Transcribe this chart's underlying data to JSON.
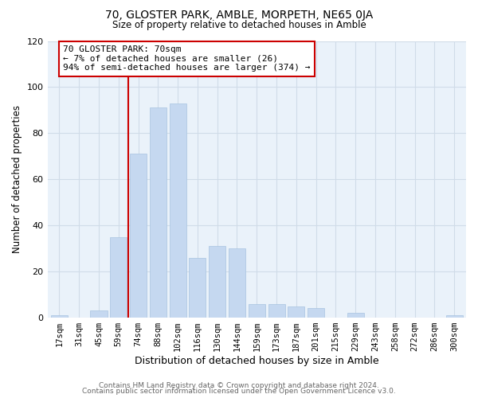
{
  "title": "70, GLOSTER PARK, AMBLE, MORPETH, NE65 0JA",
  "subtitle": "Size of property relative to detached houses in Amble",
  "xlabel": "Distribution of detached houses by size in Amble",
  "ylabel": "Number of detached properties",
  "bar_labels": [
    "17sqm",
    "31sqm",
    "45sqm",
    "59sqm",
    "74sqm",
    "88sqm",
    "102sqm",
    "116sqm",
    "130sqm",
    "144sqm",
    "159sqm",
    "173sqm",
    "187sqm",
    "201sqm",
    "215sqm",
    "229sqm",
    "243sqm",
    "258sqm",
    "272sqm",
    "286sqm",
    "300sqm"
  ],
  "bar_values": [
    1,
    0,
    3,
    35,
    71,
    91,
    93,
    26,
    31,
    30,
    6,
    6,
    5,
    4,
    0,
    2,
    0,
    0,
    0,
    0,
    1
  ],
  "bar_color": "#c5d8f0",
  "bar_edge_color": "#a8c4e0",
  "marker_line_color": "#cc0000",
  "annotation_text": "70 GLOSTER PARK: 70sqm\n← 7% of detached houses are smaller (26)\n94% of semi-detached houses are larger (374) →",
  "annotation_box_color": "#ffffff",
  "annotation_box_edge_color": "#cc0000",
  "ylim": [
    0,
    120
  ],
  "yticks": [
    0,
    20,
    40,
    60,
    80,
    100,
    120
  ],
  "grid_color": "#d0dce8",
  "bg_color": "#ffffff",
  "plot_bg_color": "#eaf2fa",
  "footer_line1": "Contains HM Land Registry data © Crown copyright and database right 2024.",
  "footer_line2": "Contains public sector information licensed under the Open Government Licence v3.0."
}
